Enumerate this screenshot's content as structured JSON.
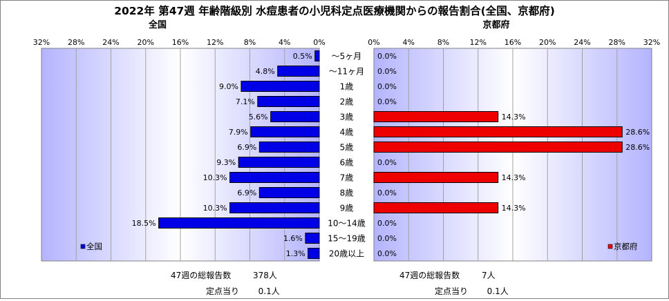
{
  "title": "2022年 第47週 年齢階級別 水痘患者の小児科定点医療機関からの報告割合(全国、京都府)",
  "colors": {
    "national": "#0000e6",
    "kyoto": "#ee0000",
    "plot_bg_edge": "#b4b4ff",
    "plot_bg_center": "#ffffff"
  },
  "chart_data": [
    {
      "type": "bar",
      "orientation": "horizontal",
      "direction": "right-to-left",
      "title": "全国",
      "xlim": [
        0,
        32
      ],
      "xticks": [
        "32%",
        "28%",
        "24%",
        "20%",
        "16%",
        "12%",
        "8%",
        "4%",
        "0%"
      ],
      "categories": [
        "～5ヶ月",
        "～11ヶ月",
        "1歳",
        "2歳",
        "3歳",
        "4歳",
        "5歳",
        "6歳",
        "7歳",
        "8歳",
        "9歳",
        "10～14歳",
        "15～19歳",
        "20歳以上"
      ],
      "series": [
        {
          "name": "全国",
          "values": [
            0.5,
            4.8,
            9.0,
            7.1,
            5.6,
            7.9,
            6.9,
            9.3,
            10.3,
            6.9,
            10.3,
            18.5,
            1.6,
            1.3
          ]
        }
      ],
      "value_labels": [
        "0.5%",
        "4.8%",
        "9.0%",
        "7.1%",
        "5.6%",
        "7.9%",
        "6.9%",
        "9.3%",
        "10.3%",
        "6.9%",
        "10.3%",
        "18.5%",
        "1.6%",
        "1.3%"
      ],
      "legend": "bottom-left",
      "grid": true
    },
    {
      "type": "bar",
      "orientation": "horizontal",
      "direction": "left-to-right",
      "title": "京都府",
      "xlim": [
        0,
        32
      ],
      "xticks": [
        "0%",
        "4%",
        "8%",
        "12%",
        "16%",
        "20%",
        "24%",
        "28%",
        "32%"
      ],
      "categories": [
        "～5ヶ月",
        "～11ヶ月",
        "1歳",
        "2歳",
        "3歳",
        "4歳",
        "5歳",
        "6歳",
        "7歳",
        "8歳",
        "9歳",
        "10～14歳",
        "15～19歳",
        "20歳以上"
      ],
      "series": [
        {
          "name": "京都府",
          "values": [
            0.0,
            0.0,
            0.0,
            0.0,
            14.3,
            28.6,
            28.6,
            0.0,
            14.3,
            0.0,
            14.3,
            0.0,
            0.0,
            0.0
          ]
        }
      ],
      "value_labels": [
        "0.0%",
        "0.0%",
        "0.0%",
        "0.0%",
        "14.3%",
        "28.6%",
        "28.6%",
        "0.0%",
        "14.3%",
        "0.0%",
        "14.3%",
        "0.0%",
        "0.0%",
        "0.0%"
      ],
      "legend": "bottom-right",
      "grid": true
    }
  ],
  "footer": {
    "national": {
      "total_label": "47週の総報告数",
      "total_value": "378人",
      "per_label": "定点当り",
      "per_value": "0.1人"
    },
    "kyoto": {
      "total_label": "47週の総報告数",
      "total_value": "7人",
      "per_label": "定点当り",
      "per_value": "0.1人"
    }
  }
}
